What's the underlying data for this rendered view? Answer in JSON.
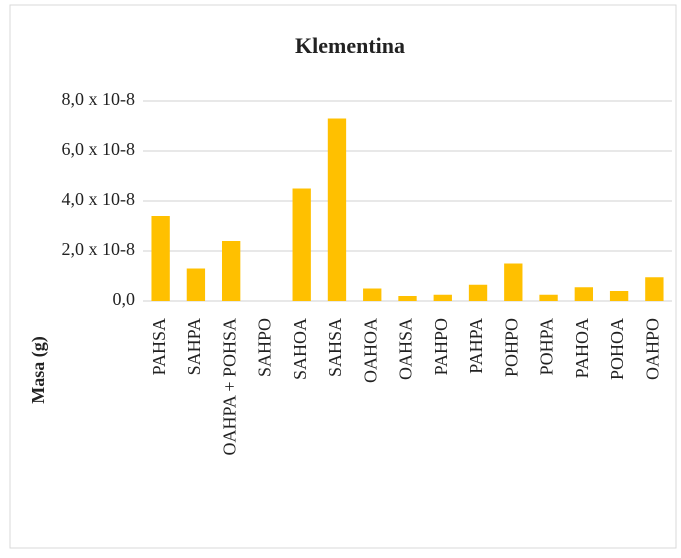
{
  "chart_data": {
    "type": "bar",
    "title": "Klementina",
    "y_label": "Masa (g)",
    "categories": [
      "PAHSA",
      "SAHPA",
      "OAHPA + POHSA",
      "SAHPO",
      "SAHOA",
      "SAHSA",
      "OAHOA",
      "OAHSA",
      "PAHPO",
      "PAHPA",
      "POHPO",
      "POHPA",
      "PAHOA",
      "POHOA",
      "OAHPO"
    ],
    "values": [
      3.4e-08,
      1.3e-08,
      2.4e-08,
      0,
      4.5e-08,
      7.3e-08,
      5e-09,
      2e-09,
      2.5e-09,
      6.5e-09,
      1.5e-08,
      2.5e-09,
      5.5e-09,
      4e-09,
      9.5e-09
    ],
    "color": "#ffc000",
    "ylim": [
      0,
      8e-08
    ],
    "yticks": [
      {
        "value": 0,
        "label": "0,0"
      },
      {
        "value": 2e-08,
        "label": "2,0 x 10-8"
      },
      {
        "value": 4e-08,
        "label": "4,0 x 10-8"
      },
      {
        "value": 6e-08,
        "label": "6,0 x 10-8"
      },
      {
        "value": 8e-08,
        "label": "8,0 x 10-8"
      }
    ],
    "grid": true
  }
}
